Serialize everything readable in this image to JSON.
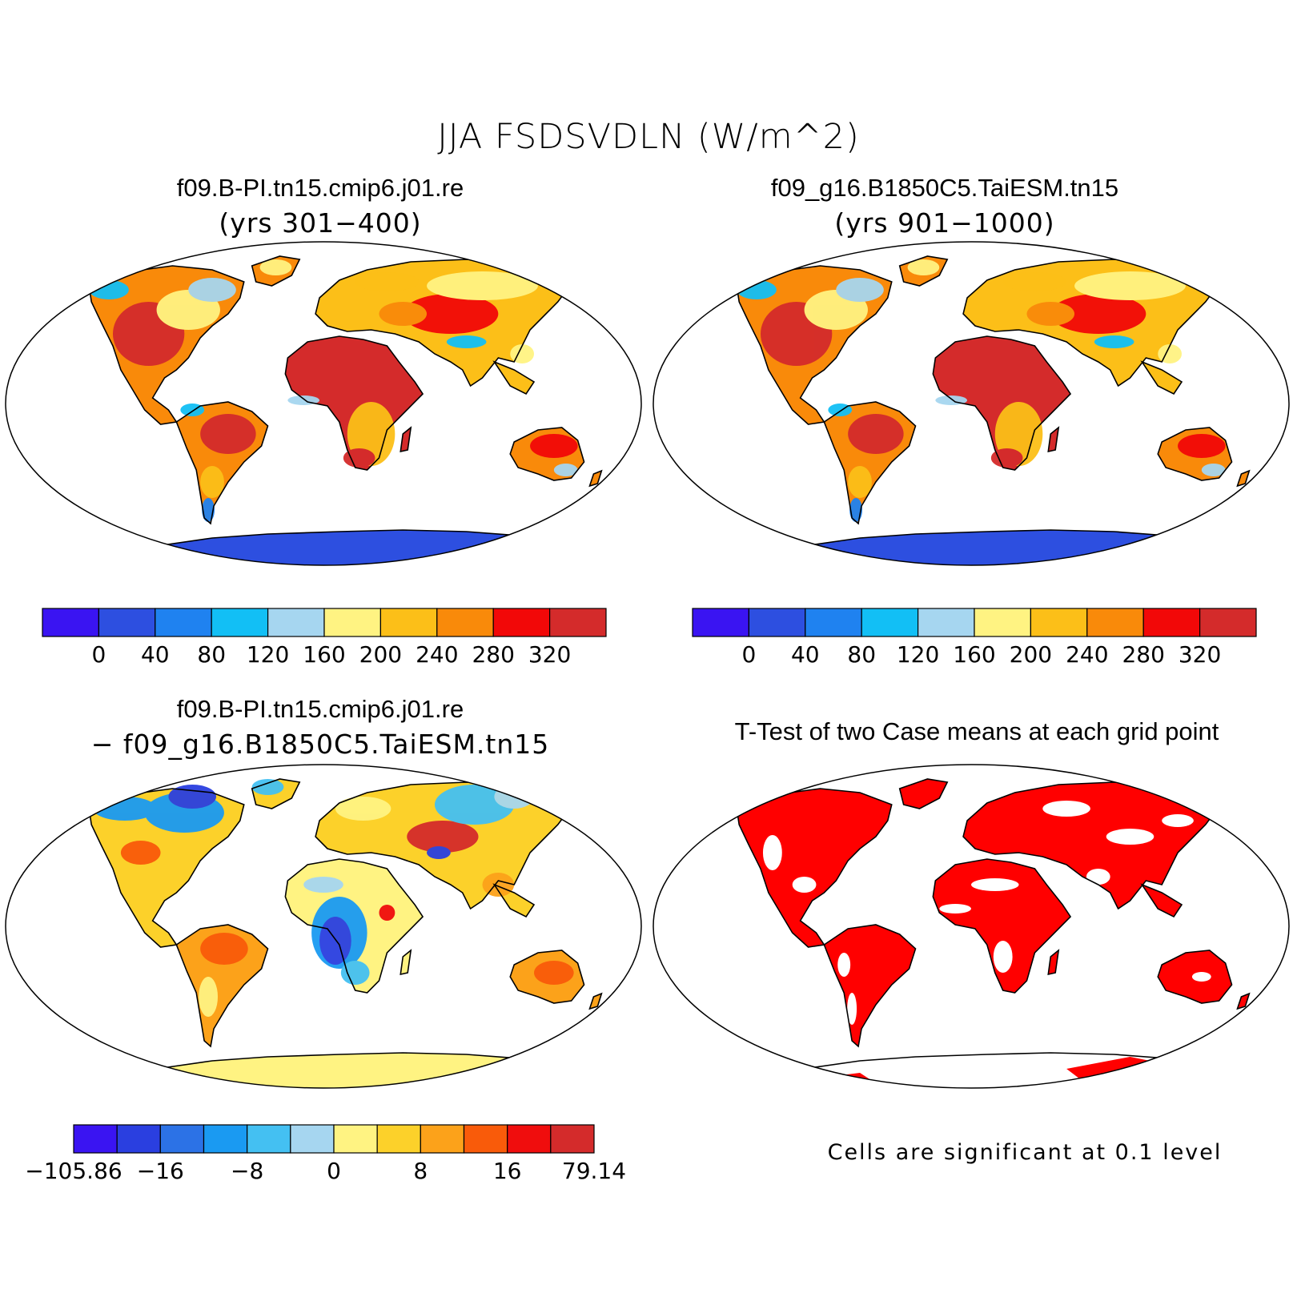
{
  "figure": {
    "title": "JJA FSDSVDLN (W/m^2)"
  },
  "panels": [
    {
      "id": "case1",
      "title": "f09.B-PI.tn15.cmip6.j01.re",
      "subtitle": "(yrs 301−400)"
    },
    {
      "id": "case2",
      "title": "f09_g16.B1850C5.TaiESM.tn15",
      "subtitle": "(yrs 901−1000)"
    },
    {
      "id": "diff",
      "title": "f09.B-PI.tn15.cmip6.j01.re",
      "subtitle": "− f09_g16.B1850C5.TaiESM.tn15"
    },
    {
      "id": "ttest",
      "title": "T-Test of two Case means at each grid point",
      "subtitle": ""
    }
  ],
  "note": "Cells are significant at 0.1 level",
  "colorbars": {
    "absolute": {
      "colors": [
        "#3a14f2",
        "#2d4fe0",
        "#1f82f0",
        "#12bff5",
        "#a6d6f0",
        "#fff382",
        "#fcbf18",
        "#f98a0a",
        "#f20808",
        "#d42b2b"
      ],
      "labels": [
        "0",
        "40",
        "80",
        "120",
        "160",
        "200",
        "240",
        "280",
        "320"
      ]
    },
    "difference": {
      "colors": [
        "#3a14f2",
        "#2a3fe0",
        "#2c72e6",
        "#1a9af2",
        "#44c0f2",
        "#a6d6f0",
        "#fff382",
        "#fcd12a",
        "#fca21a",
        "#f95b0a",
        "#f00d0d",
        "#d42b2b"
      ],
      "labels": [
        "−105.86",
        "−16",
        "−8",
        "0",
        "8",
        "16",
        "79.14"
      ]
    }
  },
  "significance_color": "#ff0000"
}
